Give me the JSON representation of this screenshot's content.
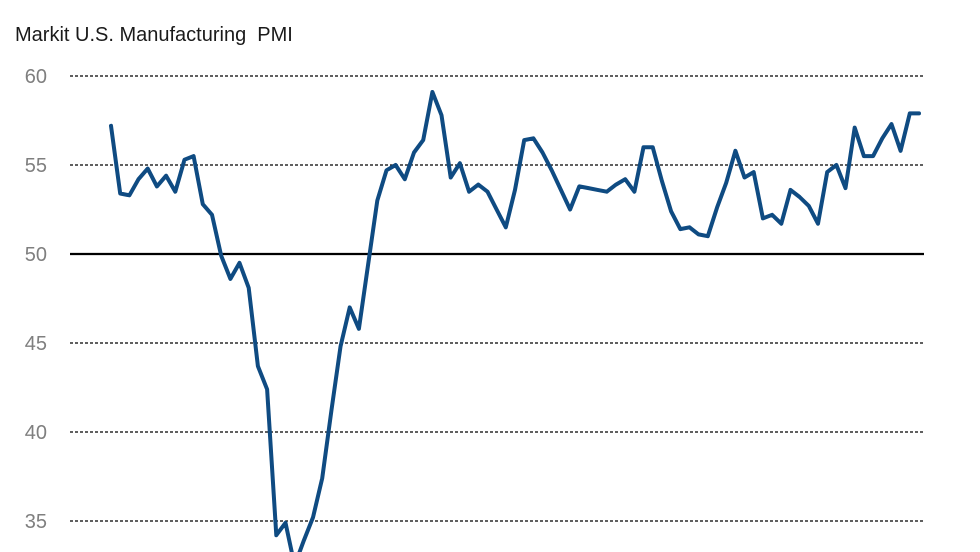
{
  "chart_data": {
    "type": "line",
    "title": "Markit U.S. Manufacturing  PMI",
    "xlabel": "",
    "ylabel": "",
    "ylim": [
      33,
      60
    ],
    "yticks": [
      35,
      40,
      45,
      50,
      55,
      60
    ],
    "grid": true,
    "colors": {
      "line": "#0f4b82",
      "grid": "#000000",
      "tick_label": "#7f7f7f",
      "baseline": "#000000"
    },
    "series": [
      {
        "values": [
          57.2,
          53.4,
          53.3,
          54.2,
          54.8,
          53.8,
          54.4,
          53.5,
          55.3,
          55.5,
          52.8,
          52.2,
          49.9,
          48.6,
          49.5,
          48.1,
          43.7,
          42.4,
          34.2,
          34.9,
          32.5,
          33.9,
          35.2,
          37.4,
          41.2,
          44.8,
          47.0,
          45.8,
          49.4,
          53.0,
          54.7,
          55.0,
          54.2,
          55.7,
          56.4,
          59.1,
          57.8,
          54.3,
          55.1,
          53.5,
          53.9,
          53.5,
          52.5,
          51.5,
          53.6,
          56.4,
          56.5,
          55.7,
          54.7,
          53.6,
          52.5,
          53.8,
          53.7,
          53.6,
          53.5,
          53.9,
          54.2,
          53.5,
          56.0,
          56.0,
          54.1,
          52.4,
          51.4,
          51.5,
          51.1,
          51.0,
          52.6,
          54.0,
          55.8,
          54.3,
          54.6,
          52.0,
          52.2,
          51.7,
          53.6,
          53.2,
          52.7,
          51.7,
          54.6,
          55.0,
          53.7,
          57.1,
          55.5,
          55.5,
          56.5,
          57.3,
          55.8,
          57.9,
          57.9
        ]
      }
    ]
  }
}
